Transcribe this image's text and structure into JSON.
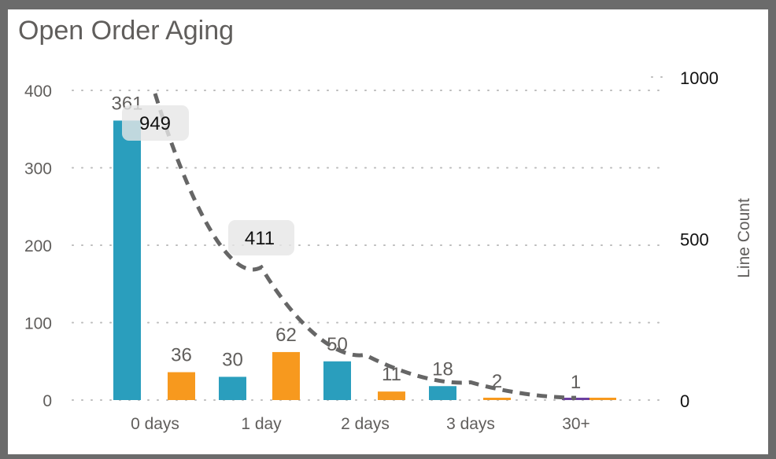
{
  "chart_data": {
    "type": "bar",
    "title": "Open Order Aging",
    "categories": [
      "0 days",
      "1 day",
      "2 days",
      "3 days",
      "30+"
    ],
    "series": [
      {
        "values": [
          361,
          30,
          50,
          18,
          null
        ],
        "color": "#2a9ebd"
      },
      {
        "values": [
          36,
          62,
          11,
          2,
          3
        ],
        "color": "#f7991e"
      },
      {
        "values": [
          null,
          null,
          null,
          null,
          1
        ],
        "color": "#6b3fa0"
      }
    ],
    "line": {
      "axis": "secondary",
      "values": [
        949,
        411,
        140,
        55,
        7
      ],
      "labeled": [
        true,
        true,
        false,
        false,
        false
      ],
      "color": "#666666",
      "style": "dashed"
    },
    "y_left": {
      "ylim": [
        0,
        400
      ],
      "ticks": [
        "0",
        "100",
        "200",
        "300",
        "400"
      ]
    },
    "y_right": {
      "label": "Line Count",
      "ylim": [
        0,
        1000
      ],
      "ticks": [
        "0",
        "500",
        "1000"
      ]
    },
    "grid": "dotted horizontal",
    "legend": "none"
  }
}
